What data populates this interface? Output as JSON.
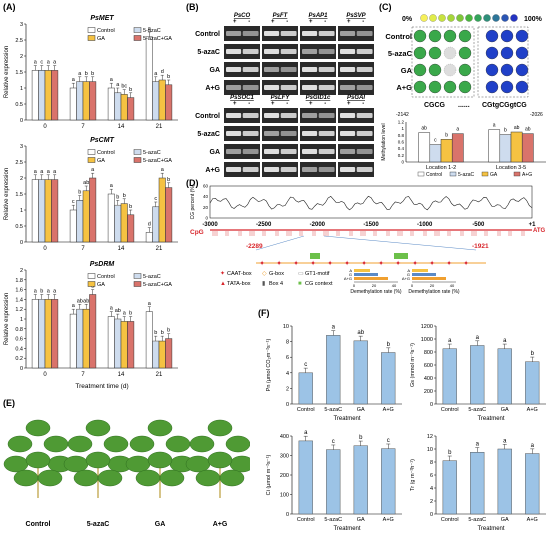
{
  "panels": {
    "A": {
      "label": "(A)"
    },
    "B": {
      "label": "(B)"
    },
    "C": {
      "label": "(C)"
    },
    "D": {
      "label": "(D)"
    },
    "E": {
      "label": "(E)"
    },
    "F": {
      "label": "(F)"
    }
  },
  "legend_treatments": [
    "Control",
    "5-azaC",
    "GA",
    "5-azaC+GA"
  ],
  "legend_treatments_short": [
    "Control",
    "5-azaC",
    "GA",
    "A+G"
  ],
  "colors": {
    "control": "#ffffff",
    "azac": "#ffffff",
    "ga": "#f5c242",
    "combo": "#d9736b",
    "bar_f": "#9cc3e6"
  },
  "chart_data": [
    {
      "type": "bar",
      "title": "PsMET",
      "xlabel": "",
      "ylabel": "Relative expression",
      "categories": [
        "0",
        "7",
        "14",
        "21"
      ],
      "ylim": [
        0,
        3
      ],
      "yticks": [
        "0",
        "0.5",
        "1",
        "1.5",
        "2",
        "2.5",
        "3"
      ],
      "series": [
        {
          "name": "Control",
          "values": [
            1.55,
            1.0,
            1.0,
            2.6
          ]
        },
        {
          "name": "5-azaC",
          "values": [
            1.55,
            1.2,
            0.85,
            1.2
          ]
        },
        {
          "name": "GA",
          "values": [
            1.55,
            1.2,
            0.8,
            1.25
          ]
        },
        {
          "name": "5-azaC+GA",
          "values": [
            1.55,
            1.2,
            0.7,
            1.1
          ]
        }
      ],
      "letters": [
        [
          "a",
          "a",
          "a",
          "a"
        ],
        [
          "c",
          "a",
          "a",
          "a"
        ],
        [
          "a",
          "b",
          "bc",
          "d"
        ],
        [
          "a",
          "b",
          "b",
          "b"
        ]
      ]
    },
    {
      "type": "bar",
      "title": "PsCMT",
      "xlabel": "",
      "ylabel": "Relative expression",
      "categories": [
        "0",
        "7",
        "14",
        "21"
      ],
      "ylim": [
        0,
        3
      ],
      "yticks": [
        "0",
        "0.5",
        "1",
        "1.5",
        "2",
        "2.5",
        "3"
      ],
      "series": [
        {
          "name": "Control",
          "values": [
            1.95,
            1.0,
            1.5,
            0.3
          ]
        },
        {
          "name": "5-azaC",
          "values": [
            1.95,
            1.3,
            1.15,
            1.1
          ]
        },
        {
          "name": "GA",
          "values": [
            1.95,
            1.6,
            1.2,
            2.0
          ]
        },
        {
          "name": "5-azaC+GA",
          "values": [
            1.95,
            2.0,
            0.85,
            1.7
          ]
        }
      ],
      "letters": [
        [
          "a",
          "c",
          "a",
          "d"
        ],
        [
          "a",
          "b",
          "b",
          "c"
        ],
        [
          "a",
          "ab",
          "b",
          "a"
        ],
        [
          "a",
          "a",
          "b",
          "b"
        ]
      ]
    },
    {
      "type": "bar",
      "title": "PsDRM",
      "xlabel": "Treatment time (d)",
      "ylabel": "Relative expression",
      "categories": [
        "0",
        "7",
        "14",
        "21"
      ],
      "ylim": [
        0,
        2
      ],
      "yticks": [
        "0",
        "0.2",
        "0.4",
        "0.6",
        "0.8",
        "1",
        "1.2",
        "1.4",
        "1.6",
        "1.8",
        "2"
      ],
      "series": [
        {
          "name": "Control",
          "values": [
            1.4,
            1.1,
            1.05,
            1.15
          ]
        },
        {
          "name": "5-azaC",
          "values": [
            1.4,
            1.2,
            1.0,
            0.55
          ]
        },
        {
          "name": "GA",
          "values": [
            1.4,
            1.2,
            0.95,
            0.55
          ]
        },
        {
          "name": "5-azaC+GA",
          "values": [
            1.4,
            1.5,
            0.95,
            0.6
          ]
        }
      ],
      "letters": [
        [
          "a",
          "a",
          "a",
          "a"
        ],
        [
          "b",
          "ab",
          "ab",
          "b"
        ],
        [
          "a",
          "ab",
          "a",
          "b"
        ],
        [
          "a",
          "a",
          "b",
          "b"
        ]
      ]
    },
    {
      "type": "bar",
      "title": "",
      "xlabel": "",
      "ylabel": "Methylation level",
      "categories": [
        "Location 1-2",
        "Location 3-5"
      ],
      "ylim": [
        0,
        1.2
      ],
      "yticks": [
        "0",
        "0.2",
        "0.4",
        "0.6",
        "0.8",
        "1",
        "1.2"
      ],
      "series": [
        {
          "name": "Control",
          "values": [
            0.88,
            0.97
          ]
        },
        {
          "name": "5-azaC",
          "values": [
            0.52,
            0.82
          ]
        },
        {
          "name": "GA",
          "values": [
            0.68,
            0.9
          ]
        },
        {
          "name": "A+G",
          "values": [
            0.85,
            0.85
          ]
        }
      ],
      "letters": [
        [
          "ab",
          "a"
        ],
        [
          "c",
          "b"
        ],
        [
          "b",
          "ab"
        ],
        [
          "a",
          "ab"
        ]
      ]
    },
    {
      "type": "line",
      "title": "",
      "xlabel": "",
      "ylabel": "CG percent (%)",
      "x_ticks": [
        "-3000",
        "-2500",
        "-2000",
        "-1500",
        "-1000",
        "-500",
        "+1"
      ],
      "ylim": [
        0,
        60
      ],
      "yticks": [
        "0",
        "20",
        "40",
        "60"
      ]
    },
    {
      "type": "bar",
      "title": "",
      "xlabel": "Treatment",
      "ylabel": "Pn (μmol CO₂m⁻²s⁻¹)",
      "categories": [
        "Control",
        "5-azaC",
        "GA",
        "A+G"
      ],
      "ylim": [
        0,
        10
      ],
      "yticks": [
        "0",
        "2",
        "4",
        "6",
        "8",
        "10"
      ],
      "values": [
        4.0,
        8.8,
        8.1,
        6.6
      ],
      "letters": [
        "c",
        "a",
        "ab",
        "b"
      ]
    },
    {
      "type": "bar",
      "title": "",
      "xlabel": "Treatment",
      "ylabel": "Gs (mmol m⁻²s⁻¹)",
      "categories": [
        "Control",
        "5-azaC",
        "GA",
        "A+G"
      ],
      "ylim": [
        0,
        1200
      ],
      "yticks": [
        "0",
        "200",
        "400",
        "600",
        "800",
        "1000",
        "1200"
      ],
      "values": [
        850,
        900,
        850,
        650
      ],
      "letters": [
        "a",
        "a",
        "a",
        "b"
      ]
    },
    {
      "type": "bar",
      "title": "",
      "xlabel": "Treatment",
      "ylabel": "Ci (μmol m⁻²s⁻¹)",
      "categories": [
        "Control",
        "5-azaC",
        "GA",
        "A+G"
      ],
      "ylim": [
        0,
        400
      ],
      "yticks": [
        "0",
        "100",
        "200",
        "300",
        "400"
      ],
      "values": [
        375,
        330,
        350,
        335
      ],
      "letters": [
        "a",
        "c",
        "b",
        "c"
      ]
    },
    {
      "type": "bar",
      "title": "",
      "xlabel": "Treatment",
      "ylabel": "Tr (g m⁻²h⁻¹)",
      "categories": [
        "Control",
        "5-azaC",
        "GA",
        "A+G"
      ],
      "ylim": [
        0,
        12
      ],
      "yticks": [
        "0",
        "2",
        "4",
        "6",
        "8",
        "10",
        "12"
      ],
      "values": [
        8.2,
        9.5,
        10.0,
        9.3
      ],
      "letters": [
        "b",
        "a",
        "a",
        "a"
      ]
    }
  ],
  "gel": {
    "top_genes": [
      "PsCO",
      "PsFT",
      "PsAP1",
      "PsSVP"
    ],
    "bottom_genes": [
      "PsSOC1",
      "PsLFY",
      "PsGID1c",
      "PsGAI"
    ],
    "rows": [
      "Control",
      "5-azaC",
      "GA",
      "A+G"
    ],
    "signs": [
      "+",
      "-"
    ]
  },
  "methyl": {
    "scale_min": "0%",
    "scale_max": "100%",
    "left_motif": "CGCG",
    "dots": "......",
    "right_motif": "CGtgCGgtCG",
    "left_pos": "-2142",
    "right_pos": "-2026"
  },
  "promoter": {
    "atg": "ATG",
    "cpg": "CpG",
    "region_start": "-2289",
    "region_end": "-1921",
    "legend": [
      "CAAT-box",
      "G-box",
      "GT1-motif",
      "TATA-box",
      "Box 4",
      "CG context"
    ],
    "demeth_label": "Demethylation rate (%)",
    "demeth_ticks": [
      "0",
      "20",
      "40"
    ],
    "demeth_rows": [
      "A",
      "G",
      "A+G"
    ]
  },
  "photos": {
    "labels": [
      "Control",
      "5-azaC",
      "GA",
      "A+G"
    ]
  }
}
